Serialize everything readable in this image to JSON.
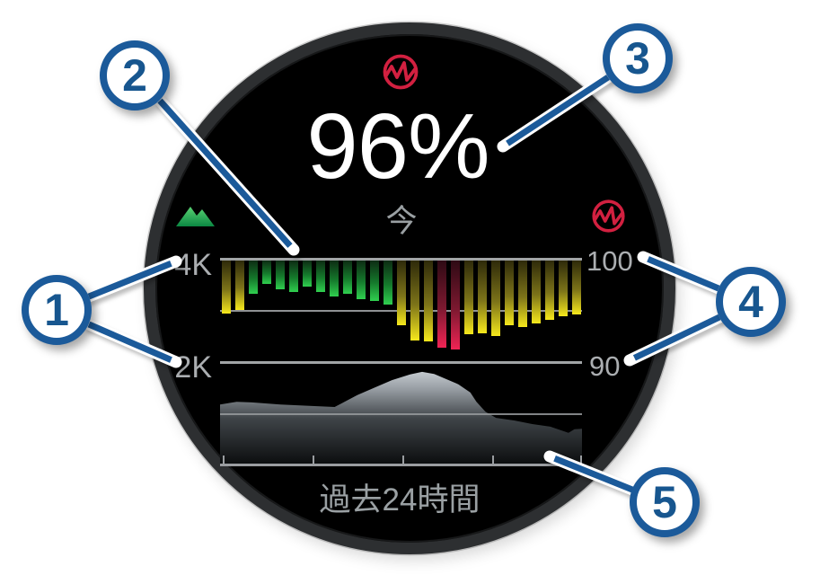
{
  "watch": {
    "current": {
      "value": "96%",
      "label": "今"
    },
    "footer": "過去24時間"
  },
  "left_axis": {
    "icon": "elevation-mountain-icon",
    "top": "4K",
    "bottom": "2K"
  },
  "right_axis": {
    "icon": "pulse-ox-icon",
    "top": "100",
    "bottom": "90"
  },
  "header_icon": "pulse-ox-icon",
  "callouts": [
    {
      "label": "1"
    },
    {
      "label": "2"
    },
    {
      "label": "3"
    },
    {
      "label": "4"
    },
    {
      "label": "5"
    }
  ],
  "colors": {
    "callout_blue": "#1b5a9a",
    "pulse_ox_red": "#d22040",
    "bar_green_tip": "#30cf4f",
    "bar_yellow_tip": "#f6e81c",
    "bar_red_tip": "#f02454",
    "area_gray_top": "#c3c9ce",
    "label_gray": "#abaeb1",
    "watch_face": "#000000",
    "bezel": "#2d2f31"
  },
  "chart_data": [
    {
      "type": "bar",
      "name": "spo2-readings-last-24h",
      "title": "",
      "xlabel": "過去24時間",
      "ylabel": "SpO2 %",
      "ylim": [
        90,
        100
      ],
      "yticks": [
        100,
        95,
        90
      ],
      "ytick_labels_shown": [
        "100",
        "90"
      ],
      "bars_hang_from_top": true,
      "values": [
        94.9,
        95.2,
        96.8,
        97.7,
        97.2,
        97.0,
        97.5,
        97.0,
        96.5,
        96.8,
        96.3,
        96.1,
        95.7,
        93.7,
        92.3,
        92.2,
        91.6,
        91.4,
        92.9,
        93.0,
        92.7,
        93.7,
        93.6,
        93.9,
        94.3,
        94.6,
        94.8
      ],
      "zones": [
        "yellow",
        "yellow",
        "green",
        "green",
        "green",
        "green",
        "green",
        "green",
        "green",
        "green",
        "green",
        "green",
        "green",
        "yellow",
        "yellow",
        "yellow",
        "red",
        "red",
        "yellow",
        "yellow",
        "yellow",
        "yellow",
        "yellow",
        "yellow",
        "yellow",
        "yellow",
        "yellow"
      ]
    },
    {
      "type": "area",
      "name": "elevation-profile-last-24h",
      "title": "",
      "xlabel": "過去24時間",
      "ylabel": "Elevation",
      "ylim_k": [
        0,
        4
      ],
      "ytick_labels_shown": [
        "4K",
        "2K"
      ],
      "x_hours": [
        0,
        1.1,
        2.1,
        4,
        6.1,
        7.6,
        9.1,
        10.2,
        11.4,
        12.6,
        13.4,
        14.2,
        15.8,
        16.6,
        17.0,
        17.6,
        18.3,
        19.5,
        20.7,
        21.9,
        23.1,
        23.5,
        24
      ],
      "elevation_k": [
        1.18,
        1.23,
        1.22,
        1.18,
        1.15,
        1.13,
        1.36,
        1.5,
        1.65,
        1.76,
        1.81,
        1.77,
        1.57,
        1.41,
        1.23,
        1.04,
        0.92,
        0.87,
        0.8,
        0.75,
        0.63,
        0.7,
        0.71
      ]
    }
  ]
}
